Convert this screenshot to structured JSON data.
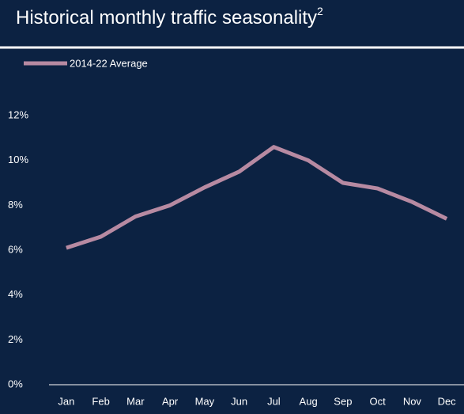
{
  "chart_data": {
    "type": "line",
    "title": "Historical monthly traffic seasonality",
    "title_superscript": "2",
    "categories": [
      "Jan",
      "Feb",
      "Mar",
      "Apr",
      "May",
      "Jun",
      "Jul",
      "Aug",
      "Sep",
      "Oct",
      "Nov",
      "Dec"
    ],
    "series": [
      {
        "name": "2014-22 Average",
        "color": "#b78aa2",
        "values": [
          6.1,
          6.6,
          7.5,
          8.0,
          8.8,
          9.5,
          10.6,
          10.0,
          9.0,
          8.75,
          8.15,
          7.4
        ]
      }
    ],
    "ylim": [
      0,
      12
    ],
    "yticks": [
      {
        "value": 0,
        "label": "0%"
      },
      {
        "value": 2,
        "label": "2%"
      },
      {
        "value": 4,
        "label": "4%"
      },
      {
        "value": 6,
        "label": "6%"
      },
      {
        "value": 8,
        "label": "8%"
      },
      {
        "value": 10,
        "label": "10%"
      },
      {
        "value": 12,
        "label": "12%"
      }
    ],
    "grid": false
  }
}
